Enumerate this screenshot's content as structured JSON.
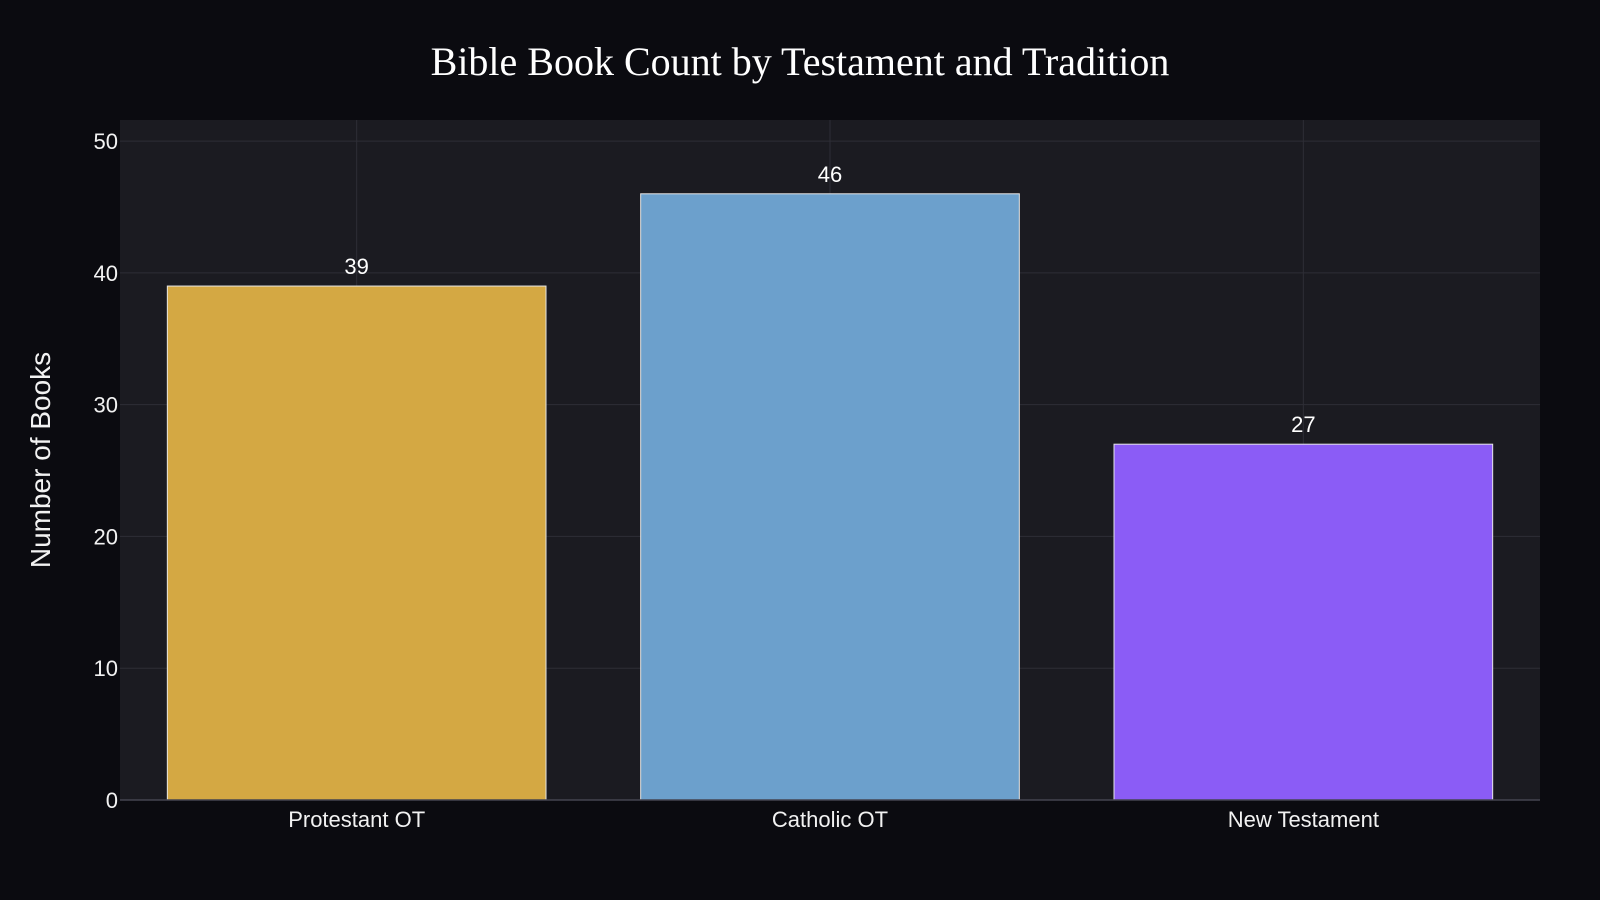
{
  "chart_data": {
    "type": "bar",
    "title": "Bible Book Count by Testament and Tradition",
    "xlabel": "",
    "ylabel": "Number of Books",
    "categories": [
      "Protestant OT",
      "Catholic OT",
      "New Testament"
    ],
    "values": [
      39,
      46,
      27
    ],
    "value_labels": [
      "39",
      "46",
      "27"
    ],
    "bar_colors": [
      "#d4a843",
      "#6ca0cc",
      "#8b5cf6"
    ],
    "ylim": [
      0,
      51.6
    ],
    "yticks": [
      0,
      10,
      20,
      30,
      40,
      50
    ],
    "ytick_labels": [
      "0",
      "10",
      "20",
      "30",
      "40",
      "50"
    ],
    "grid": true,
    "legend": "none"
  },
  "colors": {
    "page_background": "#0b0b10",
    "plot_background": "#1b1b21",
    "grid": "#2e2e36",
    "bar_border": "#e6e6e6",
    "text": "#f2f2f2"
  }
}
